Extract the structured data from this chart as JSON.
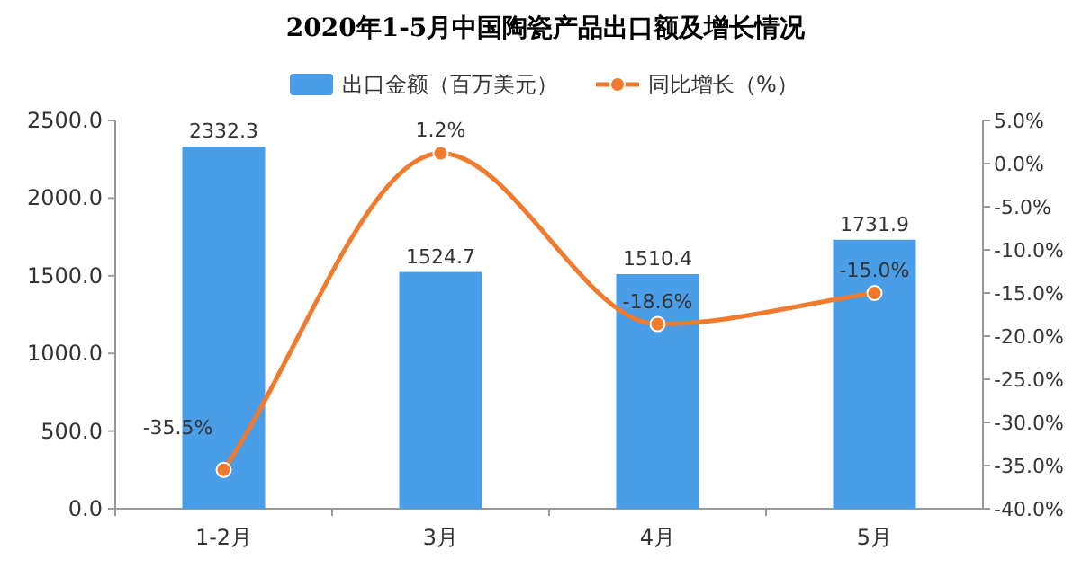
{
  "chart_data": {
    "type": "bar",
    "title": "2020年1-5月中国陶瓷产品出口额及增长情况",
    "categories": [
      "1-2月",
      "3月",
      "4月",
      "5月"
    ],
    "series": [
      {
        "name": "出口金额（百万美元）",
        "color": "#4a9ee8",
        "values": [
          2332.3,
          1524.7,
          1510.4,
          1731.9
        ],
        "value_labels": [
          "2332.3",
          "1524.7",
          "1510.4",
          "1731.9"
        ]
      },
      {
        "name": "同比增长（%）",
        "type": "line",
        "axis": "y2",
        "color": "#f07a2e",
        "values": [
          -35.5,
          1.2,
          -18.6,
          -15.0
        ],
        "value_labels": [
          "-35.5%",
          "1.2%",
          "-18.6%",
          "-15.0%"
        ]
      }
    ],
    "ylim": [
      0,
      2500
    ],
    "yticks": [
      {
        "value": 0,
        "label": "0.0"
      },
      {
        "value": 500,
        "label": "500.0"
      },
      {
        "value": 1000,
        "label": "1000.0"
      },
      {
        "value": 1500,
        "label": "1500.0"
      },
      {
        "value": 2000,
        "label": "2000.0"
      },
      {
        "value": 2500,
        "label": "2500.0"
      }
    ],
    "y2lim": [
      -40,
      5
    ],
    "y2ticks": [
      {
        "value": -40,
        "label": "-40.0%"
      },
      {
        "value": -35,
        "label": "-35.0%"
      },
      {
        "value": -30,
        "label": "-30.0%"
      },
      {
        "value": -25,
        "label": "-25.0%"
      },
      {
        "value": -20,
        "label": "-20.0%"
      },
      {
        "value": -15,
        "label": "-15.0%"
      },
      {
        "value": -10,
        "label": "-10.0%"
      },
      {
        "value": -5,
        "label": "-5.0%"
      },
      {
        "value": 0,
        "label": "0.0%"
      },
      {
        "value": 5,
        "label": "5.0%"
      }
    ],
    "legend": "top",
    "marker": "circle"
  }
}
